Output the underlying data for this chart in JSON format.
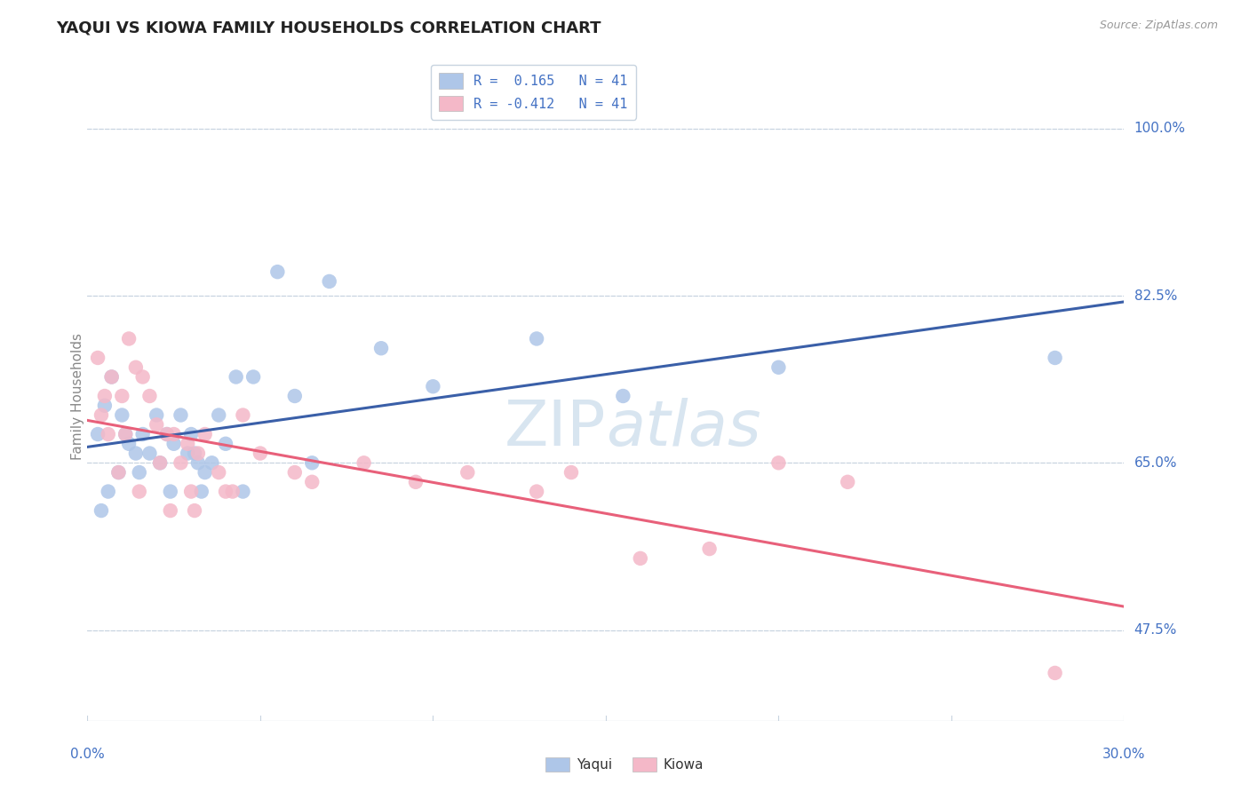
{
  "title": "YAQUI VS KIOWA FAMILY HOUSEHOLDS CORRELATION CHART",
  "source": "Source: ZipAtlas.com",
  "ylabel": "Family Households",
  "ytick_labels": [
    "47.5%",
    "65.0%",
    "82.5%",
    "100.0%"
  ],
  "ytick_vals": [
    47.5,
    65.0,
    82.5,
    100.0
  ],
  "ymin": 38.0,
  "ymax": 106.0,
  "xmin": 0.0,
  "xmax": 30.0,
  "legend_r_yaqui": "R =  0.165",
  "legend_n_yaqui": "N = 41",
  "legend_r_kiowa": "R = -0.412",
  "legend_n_kiowa": "N = 41",
  "yaqui_color": "#aec6e8",
  "kiowa_color": "#f4b8c8",
  "yaqui_line_color": "#3a5fa8",
  "kiowa_line_color": "#e8607a",
  "background_color": "#ffffff",
  "grid_color": "#c8d4e0",
  "title_color": "#222222",
  "axis_label_color": "#4472c4",
  "watermark_color": "#c8daea",
  "yaqui_x": [
    0.3,
    0.5,
    0.7,
    1.0,
    1.2,
    1.4,
    1.6,
    1.8,
    2.0,
    2.1,
    2.3,
    2.5,
    2.7,
    2.9,
    3.0,
    3.2,
    3.4,
    3.6,
    3.8,
    4.0,
    4.3,
    4.8,
    5.5,
    6.0,
    7.0,
    8.5,
    10.0,
    13.0,
    15.5,
    20.0,
    28.0,
    0.4,
    0.6,
    0.9,
    1.1,
    1.5,
    2.4,
    3.1,
    3.3,
    4.5,
    6.5
  ],
  "yaqui_y": [
    68.0,
    71.0,
    74.0,
    70.0,
    67.0,
    66.0,
    68.0,
    66.0,
    70.0,
    65.0,
    68.0,
    67.0,
    70.0,
    66.0,
    68.0,
    65.0,
    64.0,
    65.0,
    70.0,
    67.0,
    74.0,
    74.0,
    85.0,
    72.0,
    84.0,
    77.0,
    73.0,
    78.0,
    72.0,
    75.0,
    76.0,
    60.0,
    62.0,
    64.0,
    68.0,
    64.0,
    62.0,
    66.0,
    62.0,
    62.0,
    65.0
  ],
  "kiowa_x": [
    0.3,
    0.5,
    0.7,
    1.0,
    1.2,
    1.4,
    1.6,
    1.8,
    2.0,
    2.1,
    2.3,
    2.5,
    2.7,
    2.9,
    3.0,
    3.2,
    3.4,
    3.8,
    4.0,
    4.5,
    5.0,
    6.5,
    8.0,
    9.5,
    11.0,
    13.0,
    14.0,
    16.0,
    18.0,
    20.0,
    22.0,
    0.4,
    0.6,
    0.9,
    1.1,
    1.5,
    2.4,
    3.1,
    4.2,
    6.0,
    28.0
  ],
  "kiowa_y": [
    76.0,
    72.0,
    74.0,
    72.0,
    78.0,
    75.0,
    74.0,
    72.0,
    69.0,
    65.0,
    68.0,
    68.0,
    65.0,
    67.0,
    62.0,
    66.0,
    68.0,
    64.0,
    62.0,
    70.0,
    66.0,
    63.0,
    65.0,
    63.0,
    64.0,
    62.0,
    64.0,
    55.0,
    56.0,
    65.0,
    63.0,
    70.0,
    68.0,
    64.0,
    68.0,
    62.0,
    60.0,
    60.0,
    62.0,
    64.0,
    43.0
  ]
}
